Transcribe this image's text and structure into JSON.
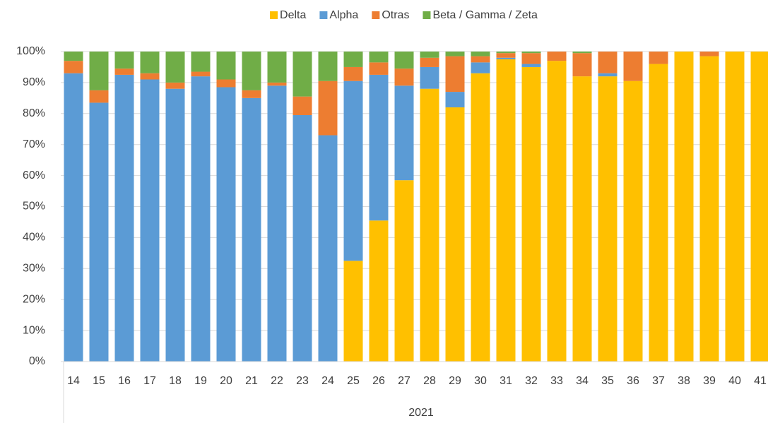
{
  "chart_data": {
    "type": "stacked_bar",
    "categories": [
      "14",
      "15",
      "16",
      "17",
      "18",
      "19",
      "20",
      "21",
      "22",
      "23",
      "24",
      "25",
      "26",
      "27",
      "28",
      "29",
      "30",
      "31",
      "32",
      "33",
      "34",
      "35",
      "36",
      "37",
      "38",
      "39",
      "40",
      "41"
    ],
    "group_label": "2021",
    "series": [
      {
        "name": "Delta",
        "color": "#ffc000",
        "values": [
          0,
          0,
          0,
          0,
          0,
          0,
          0,
          0,
          0,
          0,
          0,
          32.5,
          45.5,
          58.5,
          88,
          82,
          93,
          97.5,
          95,
          97,
          92,
          92,
          90.5,
          96,
          100,
          98.5,
          100,
          100
        ]
      },
      {
        "name": "Alpha",
        "color": "#5b9bd5",
        "values": [
          93,
          83.5,
          92.5,
          91,
          88,
          92,
          88.5,
          85,
          89,
          79.5,
          73,
          58,
          47,
          30.5,
          7,
          5,
          3.5,
          0.5,
          1,
          0,
          0,
          1,
          0,
          0,
          0,
          0,
          0,
          0
        ]
      },
      {
        "name": "Otras",
        "color": "#ed7d31",
        "values": [
          4,
          4,
          2,
          2,
          2,
          1.5,
          2.5,
          2.5,
          1,
          6,
          17.5,
          4.5,
          4,
          5.5,
          3,
          11.5,
          2,
          1.5,
          3.5,
          3,
          7.5,
          7,
          9.5,
          4,
          0,
          1.5,
          0,
          0
        ]
      },
      {
        "name": "Beta / Gamma / Zeta",
        "color": "#70ad47",
        "values": [
          3,
          12.5,
          5.5,
          7,
          10,
          6.5,
          9,
          12.5,
          10,
          14.5,
          9.5,
          5,
          3.5,
          5.5,
          2,
          1.5,
          1.5,
          0.5,
          0.5,
          0,
          0.5,
          0,
          0,
          0,
          0,
          0,
          0,
          0
        ]
      }
    ],
    "ylim": [
      0,
      100
    ],
    "yticks": [
      {
        "value": 0,
        "label": "0%"
      },
      {
        "value": 10,
        "label": "10%"
      },
      {
        "value": 20,
        "label": "20%"
      },
      {
        "value": 30,
        "label": "30%"
      },
      {
        "value": 40,
        "label": "40%"
      },
      {
        "value": 50,
        "label": "50%"
      },
      {
        "value": 60,
        "label": "60%"
      },
      {
        "value": 70,
        "label": "70%"
      },
      {
        "value": 80,
        "label": "80%"
      },
      {
        "value": 90,
        "label": "90%"
      },
      {
        "value": 100,
        "label": "100%"
      }
    ],
    "grid": true,
    "legend": "top"
  }
}
